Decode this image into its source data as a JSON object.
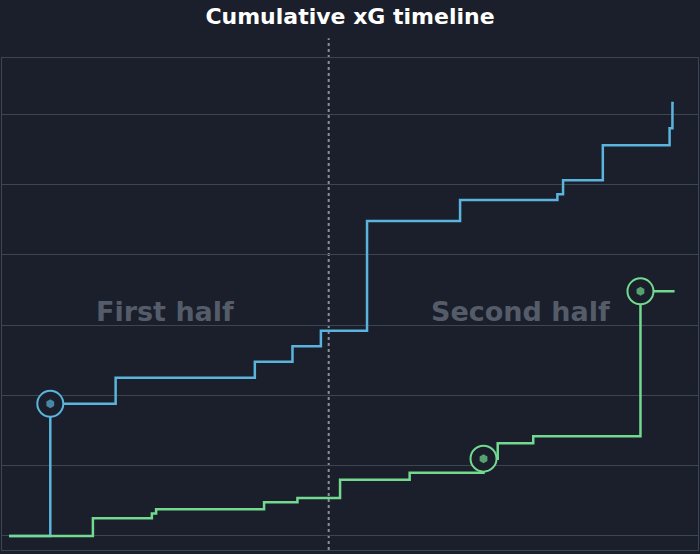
{
  "chart_data": {
    "type": "line",
    "title": "Cumulative xG timeline",
    "annotations": [
      "First half",
      "Second half"
    ],
    "halftime": 45,
    "xlim": [
      -1,
      97
    ],
    "ylim": [
      -0.1,
      3.4
    ],
    "yticks": [
      0,
      0.5,
      1,
      1.5,
      2,
      2.5,
      3
    ],
    "grid": true,
    "tick_labels": false,
    "line_style": "step",
    "series": [
      {
        "color": "#5ab4dc",
        "marker": "circle",
        "x": [
          0,
          5.8,
          15,
          34.6,
          39.9,
          43.9,
          50.4,
          63.5,
          77.2,
          78,
          83.6,
          93,
          93.4,
          93.6
        ],
        "values": [
          0,
          0.94,
          1.125,
          1.24,
          1.35,
          1.46,
          2.24,
          2.39,
          2.43,
          2.53,
          2.78,
          2.9,
          3.08,
          3.08
        ],
        "goals": [
          5.8
        ]
      },
      {
        "color": "#72d98e",
        "marker": "circle",
        "x": [
          0,
          11.8,
          20.1,
          20.7,
          35.9,
          40.6,
          46.6,
          56.4,
          66.8,
          68.8,
          73.8,
          88.9,
          93.7
        ],
        "values": [
          0,
          0.125,
          0.16,
          0.19,
          0.24,
          0.27,
          0.4,
          0.45,
          0.55,
          0.66,
          0.71,
          1.74,
          1.74
        ],
        "goals": [
          66.8,
          88.9
        ]
      }
    ]
  }
}
